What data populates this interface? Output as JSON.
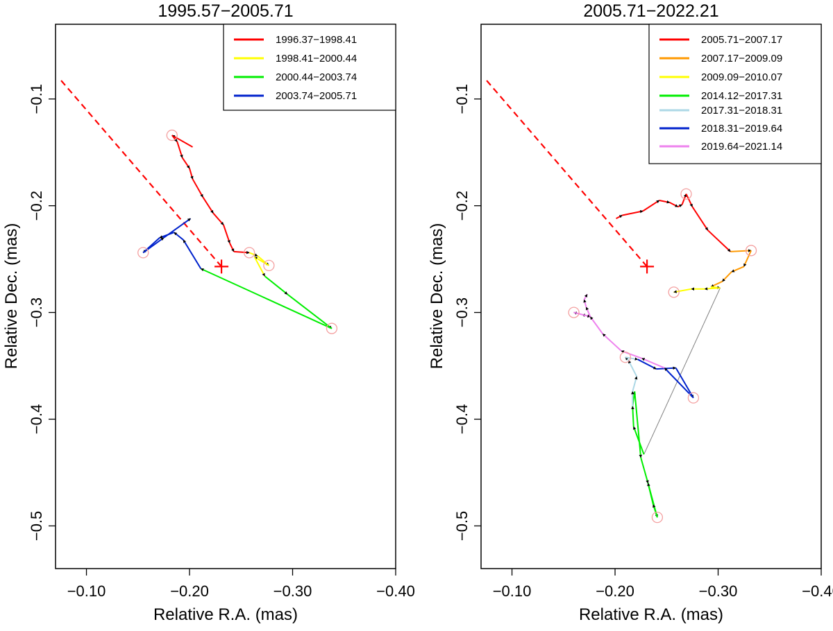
{
  "chart_data": [
    {
      "type": "line",
      "title": "1995.57−2005.71",
      "xlabel": "Relative R.A. (mas)",
      "ylabel": "Relative Dec. (mas)",
      "xlim": [
        -0.07,
        -0.4
      ],
      "ylim": [
        -0.54,
        -0.03
      ],
      "xticks": [
        -0.1,
        -0.2,
        -0.3,
        -0.4
      ],
      "xtick_labels": [
        "−0.10",
        "−0.20",
        "−0.30",
        "−0.40"
      ],
      "yticks": [
        -0.1,
        -0.2,
        -0.3,
        -0.4,
        -0.5
      ],
      "ytick_labels": [
        "−0.1",
        "−0.2",
        "−0.3",
        "−0.4",
        "−0.5"
      ],
      "legend_position": "top-right",
      "core": {
        "x": -0.231,
        "y": -0.257
      },
      "jet_direction": {
        "x": [
          -0.231,
          -0.073
        ],
        "y": [
          -0.257,
          -0.08
        ],
        "color": "#ff0000",
        "style": "dashed"
      },
      "series": [
        {
          "name": "1996.37−1998.41",
          "color": "#ff0000",
          "x": [
            -0.203,
            -0.183,
            -0.188,
            -0.193,
            -0.2,
            -0.203,
            -0.213,
            -0.223,
            -0.233,
            -0.239,
            -0.243,
            -0.258
          ],
          "y": [
            -0.145,
            -0.134,
            -0.14,
            -0.155,
            -0.165,
            -0.175,
            -0.192,
            -0.207,
            -0.218,
            -0.235,
            -0.243,
            -0.244
          ]
        },
        {
          "name": "1998.41−2000.44",
          "color": "#ffff00",
          "x": [
            -0.258,
            -0.266,
            -0.277,
            -0.263,
            -0.273
          ],
          "y": [
            -0.244,
            -0.247,
            -0.256,
            -0.248,
            -0.266
          ]
        },
        {
          "name": "2000.44−2003.74",
          "color": "#00ee00",
          "x": [
            -0.273,
            -0.295,
            -0.338,
            -0.211
          ],
          "y": [
            -0.266,
            -0.283,
            -0.315,
            -0.259
          ]
        },
        {
          "name": "2003.74−2005.71",
          "color": "#0022cc",
          "x": [
            -0.211,
            -0.194,
            -0.185,
            -0.171,
            -0.155,
            -0.175,
            -0.201
          ],
          "y": [
            -0.259,
            -0.232,
            -0.225,
            -0.23,
            -0.244,
            -0.23,
            -0.212
          ]
        }
      ],
      "highlighted_epochs": {
        "x": [
          -0.183,
          -0.258,
          -0.277,
          -0.338,
          -0.155
        ],
        "y": [
          -0.134,
          -0.244,
          -0.256,
          -0.315,
          -0.244
        ]
      }
    },
    {
      "type": "line",
      "title": "2005.71−2022.21",
      "xlabel": "Relative R.A. (mas)",
      "ylabel": "Relative Dec. (mas)",
      "xlim": [
        -0.07,
        -0.4
      ],
      "ylim": [
        -0.54,
        -0.03
      ],
      "xticks": [
        -0.1,
        -0.2,
        -0.3,
        -0.4
      ],
      "xtick_labels": [
        "−0.10",
        "−0.20",
        "−0.30",
        "−0.40"
      ],
      "yticks": [
        -0.1,
        -0.2,
        -0.3,
        -0.4,
        -0.5
      ],
      "ytick_labels": [
        "−0.1",
        "−0.2",
        "−0.3",
        "−0.4",
        "−0.5"
      ],
      "legend_position": "top-right",
      "core": {
        "x": -0.231,
        "y": -0.257
      },
      "jet_direction": {
        "x": [
          -0.231,
          -0.073
        ],
        "y": [
          -0.257,
          -0.08
        ],
        "color": "#ff0000",
        "style": "dashed"
      },
      "series": [
        {
          "name": "2005.71−2007.17",
          "color": "#ff0000",
          "x": [
            -0.201,
            -0.207,
            -0.227,
            -0.243,
            -0.253,
            -0.261,
            -0.265,
            -0.269,
            -0.275,
            -0.29,
            -0.312
          ],
          "y": [
            -0.212,
            -0.209,
            -0.205,
            -0.195,
            -0.197,
            -0.201,
            -0.199,
            -0.189,
            -0.201,
            -0.223,
            -0.243
          ]
        },
        {
          "name": "2007.17−2009.09",
          "color": "#ff9900",
          "x": [
            -0.312,
            -0.332,
            -0.325,
            -0.313,
            -0.304,
            -0.293
          ],
          "y": [
            -0.243,
            -0.242,
            -0.257,
            -0.262,
            -0.271,
            -0.276
          ]
        },
        {
          "name": "2009.09−2010.07",
          "color": "#ffff00",
          "x": [
            -0.293,
            -0.302,
            -0.287,
            -0.274,
            -0.257
          ],
          "y": [
            -0.276,
            -0.277,
            -0.278,
            -0.278,
            -0.281
          ]
        },
        {
          "name": "2014.12−2017.31",
          "color": "#00ee00",
          "x": [
            -0.228,
            -0.218,
            -0.217,
            -0.219,
            -0.225,
            -0.232,
            -0.241,
            -0.237,
            -0.232
          ],
          "y": [
            -0.433,
            -0.407,
            -0.388,
            -0.374,
            -0.436,
            -0.46,
            -0.492,
            -0.48,
            -0.46
          ]
        },
        {
          "name": "2017.31−2018.31",
          "color": "#add8e6",
          "x": [
            -0.217,
            -0.217,
            -0.221,
            -0.213,
            -0.21,
            -0.222
          ],
          "y": [
            -0.388,
            -0.374,
            -0.36,
            -0.345,
            -0.342,
            -0.344
          ]
        },
        {
          "name": "2018.31−2019.64",
          "color": "#0022cc",
          "x": [
            -0.222,
            -0.24,
            -0.259,
            -0.276,
            -0.248
          ],
          "y": [
            -0.344,
            -0.353,
            -0.352,
            -0.38,
            -0.352
          ]
        },
        {
          "name": "2019.64−2021.14",
          "color": "#ee82ee",
          "x": [
            -0.248,
            -0.226,
            -0.206,
            -0.188,
            -0.176,
            -0.168,
            -0.16,
            -0.176,
            -0.172,
            -0.17,
            -0.173
          ],
          "y": [
            -0.352,
            -0.343,
            -0.336,
            -0.32,
            -0.304,
            -0.302,
            -0.3,
            -0.304,
            -0.295,
            -0.288,
            -0.283
          ]
        }
      ],
      "connector": {
        "x": [
          -0.302,
          -0.228
        ],
        "y": [
          -0.277,
          -0.433
        ],
        "color": "#808080"
      },
      "highlighted_epochs": {
        "x": [
          -0.269,
          -0.332,
          -0.257,
          -0.16,
          -0.21,
          -0.276,
          -0.241
        ],
        "y": [
          -0.189,
          -0.242,
          -0.281,
          -0.3,
          -0.342,
          -0.38,
          -0.492
        ]
      }
    }
  ]
}
